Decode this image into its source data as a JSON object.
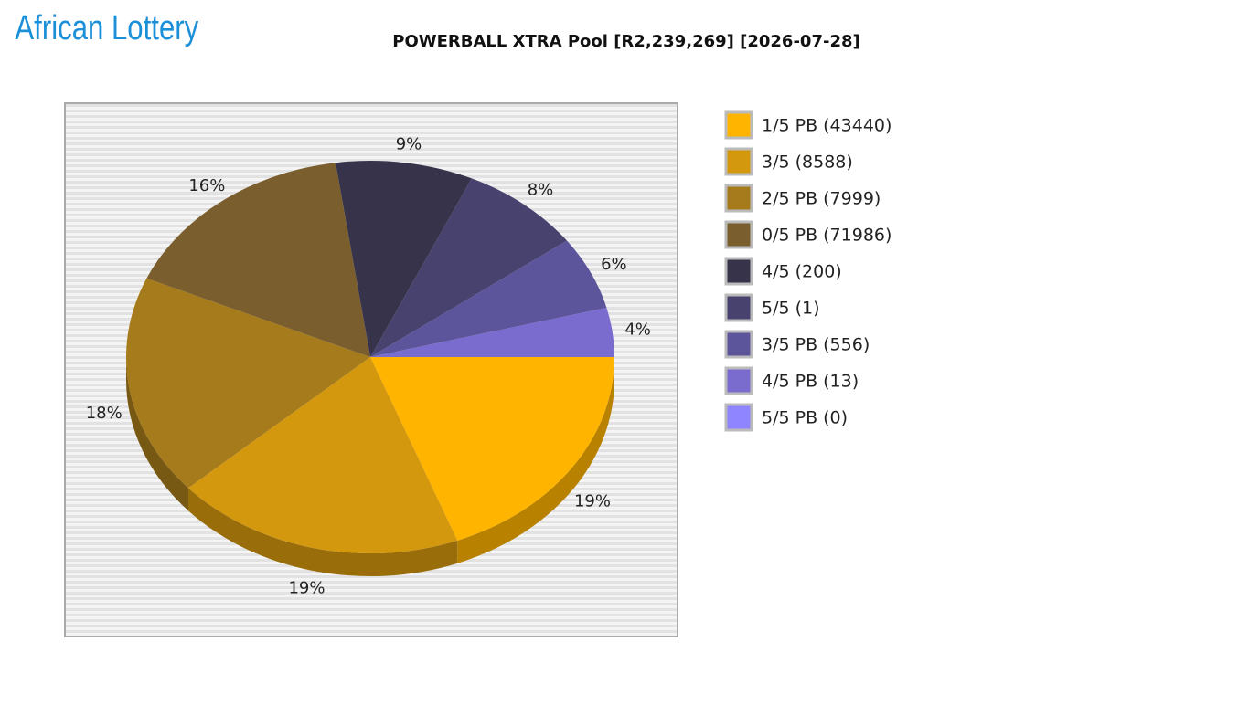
{
  "logo": "African Lottery",
  "chart_data": {
    "type": "pie",
    "title": "POWERBALL XTRA Pool [R2,239,269] [2026-07-28]",
    "categories": [
      "1/5 PB (43440)",
      "3/5 (8588)",
      "2/5 PB (7999)",
      "0/5 PB (71986)",
      "4/5 (200)",
      "5/5 (1)",
      "3/5 PB (556)",
      "4/5 PB (13)",
      "5/5 PB (0)"
    ],
    "values": [
      19,
      19,
      18,
      16,
      9,
      8,
      6,
      4,
      0
    ],
    "value_labels": [
      "19%",
      "19%",
      "18%",
      "16%",
      "9%",
      "8%",
      "6%",
      "4%",
      null
    ],
    "colors": [
      "#FFB400",
      "#D4980E",
      "#A67B1C",
      "#7A5E2E",
      "#36334A",
      "#48426E",
      "#5D559B",
      "#7A6BCE",
      "#8F85FF"
    ],
    "legend": "right"
  }
}
